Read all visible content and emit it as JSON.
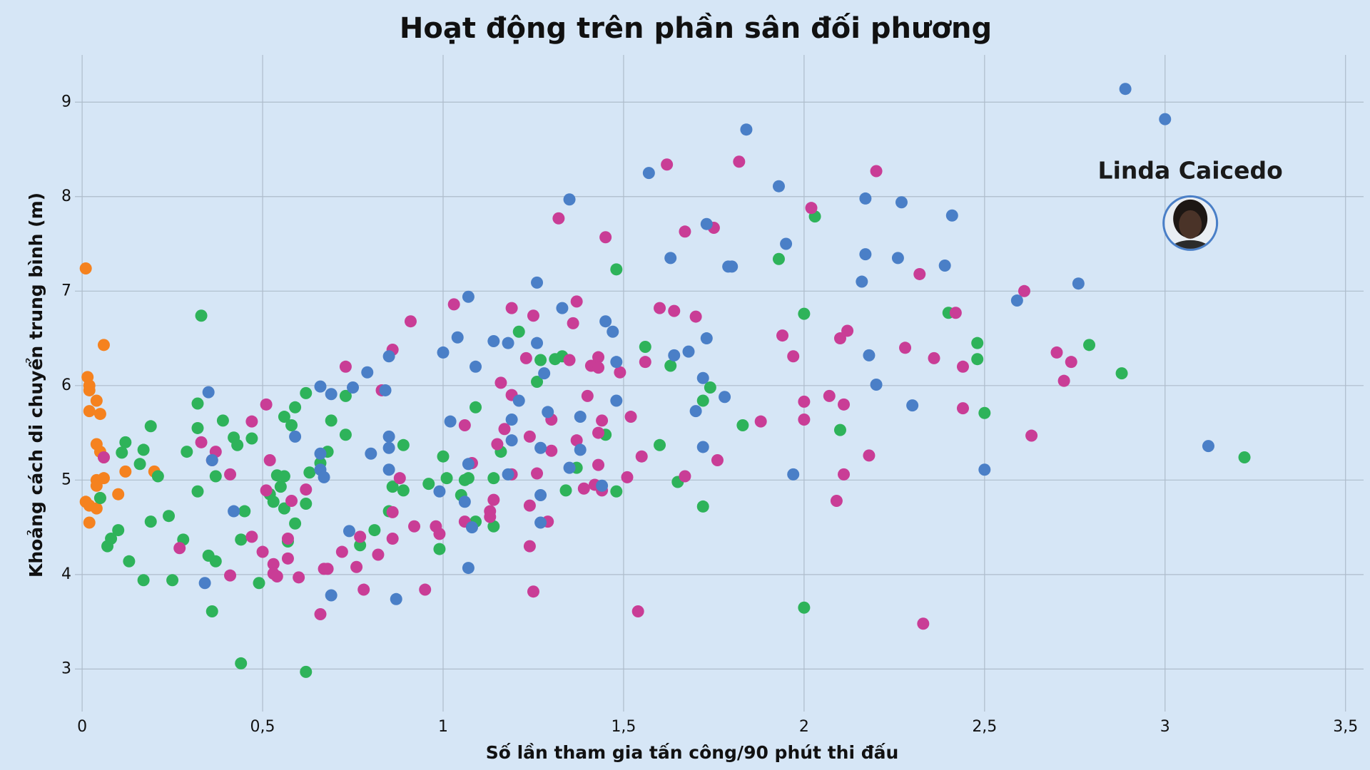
{
  "chart_data": {
    "type": "scatter",
    "title": "Hoạt động trên phần sân đối phương",
    "x_label": "Số lần tham gia tấn công/90 phút thi đấu",
    "y_label": "Khoảng cách di chuyển trung bình (m)",
    "xlim": [
      -0.02,
      3.55
    ],
    "ylim": [
      2.55,
      9.5
    ],
    "xticks": [
      0,
      {
        "value": 0.5,
        "label": "0,5"
      },
      1,
      {
        "value": 1.5,
        "label": "1,5"
      },
      2,
      {
        "value": 2.5,
        "label": "2,5"
      },
      3,
      {
        "value": 3.5,
        "label": "3,5"
      }
    ],
    "yticks": [
      3,
      4,
      5,
      6,
      7,
      8,
      9
    ],
    "grid": true,
    "series": [
      {
        "color": "#f5821f",
        "x": [
          0.01,
          0.06,
          0.015,
          0.02,
          0.02,
          0.04,
          0.02,
          0.05,
          0.04,
          0.05,
          0.06,
          0.12,
          0.2,
          0.06,
          0.04,
          0.04,
          0.1,
          0.05,
          0.01,
          0.02,
          0.04,
          0.02
        ],
        "values": [
          7.24,
          6.43,
          6.09,
          6.0,
          5.95,
          5.84,
          5.73,
          5.7,
          5.38,
          5.3,
          5.24,
          5.09,
          5.09,
          5.02,
          5.0,
          4.94,
          4.85,
          4.81,
          4.77,
          4.73,
          4.7,
          4.55
        ]
      },
      {
        "color": "#2eb35a",
        "x": [
          0.33,
          0.32,
          0.39,
          0.19,
          0.32,
          0.42,
          0.47,
          0.43,
          0.12,
          0.17,
          0.11,
          0.29,
          0.16,
          0.21,
          0.37,
          0.32,
          0.05,
          0.24,
          0.19,
          0.1,
          0.08,
          0.28,
          0.44,
          0.07,
          0.13,
          0.35,
          0.37,
          0.17,
          0.25,
          0.49,
          0.36,
          0.44,
          0.62,
          0.62,
          0.59,
          0.56,
          0.69,
          0.58,
          0.73,
          0.68,
          0.66,
          0.54,
          0.56,
          0.63,
          0.55,
          0.52,
          0.53,
          0.56,
          0.62,
          0.45,
          0.59,
          0.57,
          0.73,
          0.81,
          0.77,
          0.85,
          0.86,
          0.89,
          0.89,
          0.96,
          0.99,
          1.0,
          1.01,
          1.05,
          1.06,
          1.07,
          1.09,
          1.09,
          1.14,
          1.14,
          1.16,
          1.21,
          1.26,
          1.27,
          1.31,
          1.33,
          1.34,
          1.37,
          1.45,
          1.48,
          1.48,
          1.56,
          1.6,
          1.63,
          1.65,
          1.72,
          1.74,
          1.72,
          1.83,
          1.93,
          2.0,
          2.0,
          2.03,
          2.1,
          2.4,
          2.48,
          2.48,
          2.5,
          2.79,
          2.88,
          3.22
        ],
        "values": [
          6.74,
          5.81,
          5.63,
          5.57,
          5.55,
          5.45,
          5.44,
          5.37,
          5.4,
          5.32,
          5.29,
          5.3,
          5.17,
          5.04,
          5.04,
          4.88,
          4.81,
          4.62,
          4.56,
          4.47,
          4.38,
          4.37,
          4.37,
          4.3,
          4.14,
          4.2,
          4.14,
          3.94,
          3.94,
          3.91,
          3.61,
          3.06,
          2.97,
          5.92,
          5.77,
          5.67,
          5.63,
          5.58,
          5.48,
          5.3,
          5.18,
          5.05,
          5.04,
          5.08,
          4.93,
          4.85,
          4.77,
          4.7,
          4.75,
          4.67,
          4.54,
          4.35,
          5.89,
          4.47,
          4.31,
          4.67,
          4.93,
          5.37,
          4.89,
          4.96,
          4.27,
          5.25,
          5.02,
          4.84,
          5.0,
          5.02,
          5.77,
          4.56,
          5.02,
          4.51,
          5.3,
          6.57,
          6.04,
          6.27,
          6.28,
          6.31,
          4.89,
          5.13,
          5.48,
          7.23,
          4.88,
          6.41,
          5.37,
          6.21,
          4.98,
          5.84,
          5.98,
          4.72,
          5.58,
          7.34,
          6.76,
          3.65,
          7.79,
          5.53,
          6.77,
          6.45,
          6.28,
          5.71,
          6.43,
          6.13,
          5.24
        ]
      },
      {
        "color": "#c93d96",
        "x": [
          0.06,
          0.27,
          0.33,
          0.36,
          0.37,
          0.41,
          0.41,
          0.47,
          0.47,
          0.51,
          0.52,
          0.51,
          0.5,
          0.53,
          0.53,
          0.54,
          0.57,
          0.57,
          0.58,
          0.6,
          0.62,
          0.66,
          0.67,
          0.68,
          0.73,
          0.72,
          0.76,
          0.77,
          0.78,
          0.82,
          0.83,
          0.86,
          0.86,
          0.86,
          0.88,
          0.91,
          0.92,
          0.95,
          0.98,
          0.99,
          1.03,
          1.06,
          1.06,
          1.08,
          1.13,
          1.13,
          1.14,
          1.15,
          1.16,
          1.17,
          1.19,
          1.19,
          1.19,
          1.23,
          1.24,
          1.24,
          1.24,
          1.25,
          1.25,
          1.26,
          1.29,
          1.3,
          1.3,
          1.32,
          1.35,
          1.36,
          1.37,
          1.37,
          1.39,
          1.4,
          1.41,
          1.42,
          1.43,
          1.43,
          1.43,
          1.43,
          1.44,
          1.44,
          1.45,
          1.49,
          1.51,
          1.52,
          1.54,
          1.55,
          1.56,
          1.6,
          1.62,
          1.64,
          1.67,
          1.67,
          1.7,
          1.75,
          1.76,
          1.82,
          1.88,
          1.94,
          1.97,
          2.0,
          2.0,
          2.02,
          2.07,
          2.1,
          2.12,
          2.09,
          2.11,
          2.11,
          2.18,
          2.2,
          2.28,
          2.32,
          2.33,
          2.36,
          2.42,
          2.44,
          2.44,
          2.61,
          2.63,
          2.7,
          2.72,
          2.74
        ],
        "values": [
          5.24,
          4.28,
          5.4,
          5.21,
          5.3,
          5.06,
          3.99,
          5.62,
          4.4,
          5.8,
          5.21,
          4.89,
          4.24,
          4.11,
          4.01,
          3.98,
          4.38,
          4.17,
          4.78,
          3.97,
          4.9,
          3.58,
          4.06,
          4.06,
          6.2,
          4.24,
          4.08,
          4.4,
          3.84,
          4.21,
          5.95,
          6.38,
          4.66,
          4.38,
          5.02,
          6.68,
          4.51,
          3.84,
          4.51,
          4.43,
          6.86,
          5.58,
          4.56,
          5.18,
          4.67,
          4.61,
          4.79,
          5.38,
          6.03,
          5.54,
          6.82,
          5.9,
          5.06,
          6.29,
          5.46,
          4.3,
          4.73,
          6.74,
          3.82,
          5.07,
          4.56,
          5.64,
          5.31,
          7.77,
          6.27,
          6.66,
          6.89,
          5.42,
          4.91,
          5.89,
          6.21,
          4.95,
          5.5,
          5.16,
          6.3,
          6.19,
          4.89,
          5.63,
          7.57,
          6.14,
          5.03,
          5.67,
          3.61,
          5.25,
          6.25,
          6.82,
          8.34,
          6.79,
          7.63,
          5.04,
          6.73,
          7.67,
          5.21,
          8.37,
          5.62,
          6.53,
          6.31,
          5.83,
          5.64,
          7.88,
          5.89,
          6.5,
          6.58,
          4.78,
          5.06,
          5.8,
          5.26,
          8.27,
          6.4,
          7.18,
          3.48,
          6.29,
          6.77,
          6.2,
          5.76,
          7.0,
          5.47,
          6.35,
          6.05,
          6.25
        ]
      },
      {
        "color": "#4a7fc7",
        "x": [
          0.35,
          0.36,
          0.34,
          0.42,
          0.59,
          0.66,
          0.66,
          0.66,
          0.67,
          0.69,
          0.69,
          0.75,
          0.74,
          0.79,
          0.8,
          0.85,
          0.84,
          0.85,
          0.85,
          0.85,
          0.87,
          1.0,
          0.99,
          1.02,
          1.04,
          1.07,
          1.06,
          1.07,
          1.07,
          1.08,
          1.09,
          1.14,
          1.18,
          1.18,
          1.19,
          1.19,
          1.21,
          1.26,
          1.26,
          1.27,
          1.27,
          1.27,
          1.28,
          1.29,
          1.33,
          1.35,
          1.38,
          1.38,
          1.35,
          1.44,
          1.45,
          1.47,
          1.48,
          1.48,
          1.57,
          1.63,
          1.64,
          1.68,
          1.7,
          1.72,
          1.72,
          1.73,
          1.73,
          1.78,
          1.79,
          1.8,
          1.84,
          1.93,
          1.95,
          1.97,
          2.16,
          2.17,
          2.17,
          2.18,
          2.2,
          2.26,
          2.27,
          2.3,
          2.39,
          2.41,
          2.5,
          2.59,
          2.76,
          2.89,
          3.0,
          3.12
        ],
        "values": [
          5.93,
          5.21,
          3.91,
          4.67,
          5.46,
          5.99,
          5.28,
          5.11,
          5.03,
          5.91,
          3.78,
          5.98,
          4.46,
          6.14,
          5.28,
          6.31,
          5.95,
          5.34,
          5.46,
          5.11,
          3.74,
          6.35,
          4.88,
          5.62,
          6.51,
          6.94,
          4.77,
          5.17,
          4.07,
          4.5,
          6.2,
          6.47,
          6.45,
          5.06,
          5.42,
          5.64,
          5.84,
          7.09,
          6.45,
          4.84,
          4.55,
          5.34,
          6.13,
          5.72,
          6.82,
          7.97,
          5.67,
          5.32,
          5.13,
          4.94,
          6.68,
          6.57,
          6.25,
          5.84,
          8.25,
          7.35,
          6.32,
          6.36,
          5.73,
          6.08,
          5.35,
          7.71,
          6.5,
          5.88,
          7.26,
          7.26,
          8.71,
          8.11,
          7.5,
          5.06,
          7.1,
          7.98,
          7.39,
          6.32,
          6.01,
          7.35,
          7.94,
          5.79,
          7.27,
          7.8,
          5.11,
          6.9,
          7.08,
          9.14,
          8.82,
          5.36
        ]
      },
      {
        "color": "#4a7fc7",
        "label": "Linda Caicedo",
        "x": [
          3.07
        ],
        "values": [
          7.72
        ]
      }
    ]
  }
}
